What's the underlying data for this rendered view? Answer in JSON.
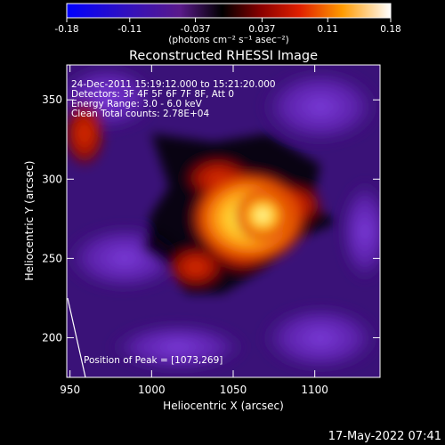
{
  "colorbar": {
    "ticks": [
      "-0.18",
      "-0.11",
      "-0.037",
      "0.037",
      "0.11",
      "0.18"
    ],
    "unit_label": "(photons cm⁻² s⁻¹ asec⁻²)",
    "range": [
      -0.18,
      0.18
    ]
  },
  "chart_data": {
    "type": "heatmap",
    "title": "Reconstructed RHESSI Image",
    "xlabel": "Heliocentric X (arcsec)",
    "ylabel": "Heliocentric Y (arcsec)",
    "xlim": [
      948,
      1140
    ],
    "ylim": [
      175,
      372
    ],
    "x_ticks": [
      950,
      1000,
      1050,
      1100
    ],
    "y_ticks": [
      200,
      250,
      300,
      350
    ],
    "x_tick_labels": [
      "950",
      "1000",
      "1050",
      "1100"
    ],
    "y_tick_labels": [
      "200",
      "250",
      "300",
      "350"
    ],
    "annotations": [
      "24-Dec-2011 15:19:12.000 to 15:21:20.000",
      "Detectors: 3F 4F 5F 6F 7F 8F, Att 0",
      "Energy Range: 3.0 - 6.0 keV",
      "Clean    Total counts: 2.78E+04"
    ],
    "peak_label": "Position of Peak = [1073,269]",
    "peak": [
      1073,
      269
    ]
  },
  "footer": {
    "timestamp": "17-May-2022 07:41"
  }
}
